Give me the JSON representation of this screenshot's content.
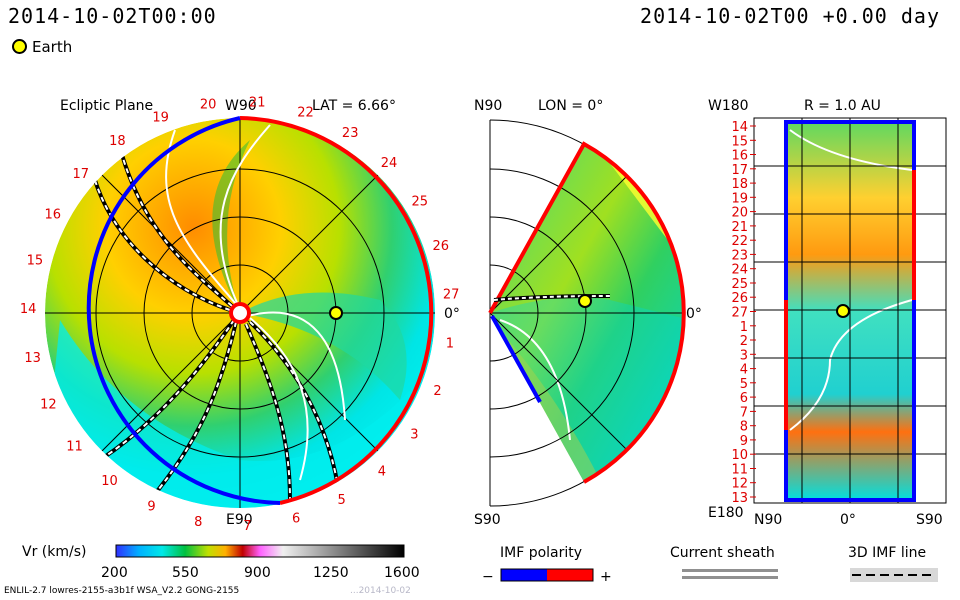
{
  "header": {
    "timestamp": "2014-10-02T00:00",
    "time_offset": "2014-10-02T00 +0.00 day",
    "legend_label": "Earth"
  },
  "panels": {
    "ecliptic": {
      "title": "Ecliptic Plane",
      "top_label": "W90",
      "bottom_label": "E90",
      "lat_label": "LAT = 6.66°",
      "right_label": "0°",
      "rotation_labels": [
        "1",
        "2",
        "3",
        "4",
        "5",
        "6",
        "7",
        "8",
        "9",
        "10",
        "11",
        "12",
        "13",
        "14",
        "15",
        "16",
        "17",
        "18",
        "19",
        "20",
        "21",
        "22",
        "23",
        "24",
        "25",
        "26",
        "27"
      ]
    },
    "meridional": {
      "top_label": "N90",
      "lon_label": "LON = 0°",
      "bottom_label": "S90",
      "right_label": "0°"
    },
    "radial": {
      "title": "R = 1.0 AU",
      "top_left_label": "W180",
      "bottom_left_label": "E180",
      "bottom_labels": [
        "N90",
        "0°",
        "S90"
      ],
      "y_ticks": [
        "14",
        "15",
        "16",
        "17",
        "18",
        "19",
        "20",
        "21",
        "22",
        "23",
        "24",
        "25",
        "26",
        "27",
        "1",
        "2",
        "3",
        "4",
        "5",
        "6",
        "7",
        "8",
        "9",
        "10",
        "11",
        "12",
        "13"
      ]
    }
  },
  "colorbar": {
    "label": "Vr (km/s)",
    "ticks": [
      "200",
      "550",
      "900",
      "1250",
      "1600"
    ],
    "min": 200,
    "max": 1600
  },
  "imf_legend": {
    "title": "IMF polarity",
    "minus": "−",
    "plus": "+",
    "current_sheath": "Current sheath",
    "imf_line": "3D IMF line",
    "colors": {
      "negative": "#0000ff",
      "positive": "#ff0000"
    }
  },
  "footer": {
    "model_info": "ENLIL-2.7 lowres-2155-a3b1f WSA_V2.2 GONG-2155",
    "run_info": "...2014-10-02"
  },
  "chart_data": [
    {
      "type": "heatmap",
      "title": "Ecliptic Plane",
      "quantity": "Vr (km/s)",
      "range": [
        200,
        1600
      ],
      "earth_marker": "0°"
    },
    {
      "type": "heatmap",
      "title": "LON = 0°",
      "quantity": "Vr (km/s)",
      "range": [
        200,
        1600
      ]
    },
    {
      "type": "heatmap",
      "title": "R = 1.0 AU",
      "quantity": "Vr (km/s)",
      "range": [
        200,
        1600
      ]
    }
  ]
}
